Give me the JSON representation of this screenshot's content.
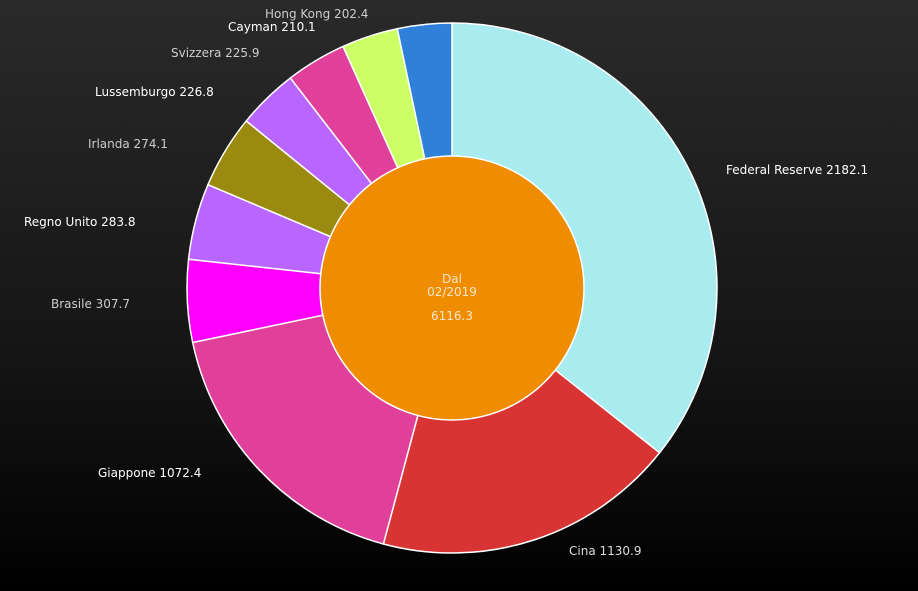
{
  "chart_data": {
    "type": "pie",
    "style": "donut",
    "start": "top-clockwise",
    "center_label": {
      "line1": "Dal",
      "line2": "02/2019",
      "total": "6116.3"
    },
    "center_color": "#F08C00",
    "slices": [
      {
        "label": "Federal Reserve",
        "value": 2182.1,
        "value_text": "2182.1",
        "color": "#A8ECF0",
        "label_color": "#FFFFFF"
      },
      {
        "label": "Cina",
        "value": 1130.9,
        "value_text": "1130.9",
        "color": "#D93434",
        "label_color": "#DDDDDD"
      },
      {
        "label": "Giappone",
        "value": 1072.4,
        "value_text": "1072.4",
        "color": "#E0409A",
        "label_color": "#FFFFFF"
      },
      {
        "label": "Brasile",
        "value": 307.7,
        "value_text": "307.7",
        "color": "#FF00FF",
        "label_color": "#CCCCCC"
      },
      {
        "label": "Regno Unito",
        "value": 283.8,
        "value_text": "283.8",
        "color": "#B866FF",
        "label_color": "#FFFFFF"
      },
      {
        "label": "Irlanda",
        "value": 274.1,
        "value_text": "274.1",
        "color": "#9A8A10",
        "label_color": "#CCCCCC"
      },
      {
        "label": "Lussemburgo",
        "value": 226.8,
        "value_text": "226.8",
        "color": "#B866FF",
        "label_color": "#FFFFFF"
      },
      {
        "label": "Svizzera",
        "value": 225.9,
        "value_text": "225.9",
        "color": "#E0409A",
        "label_color": "#CCCCCC"
      },
      {
        "label": "Cayman",
        "value": 210.1,
        "value_text": "210.1",
        "color": "#CCFF66",
        "label_color": "#FFFFFF"
      },
      {
        "label": "Hong Kong",
        "value": 202.4,
        "value_text": "202.4",
        "color": "#2E80D8",
        "label_color": "#CCCCCC"
      }
    ]
  }
}
